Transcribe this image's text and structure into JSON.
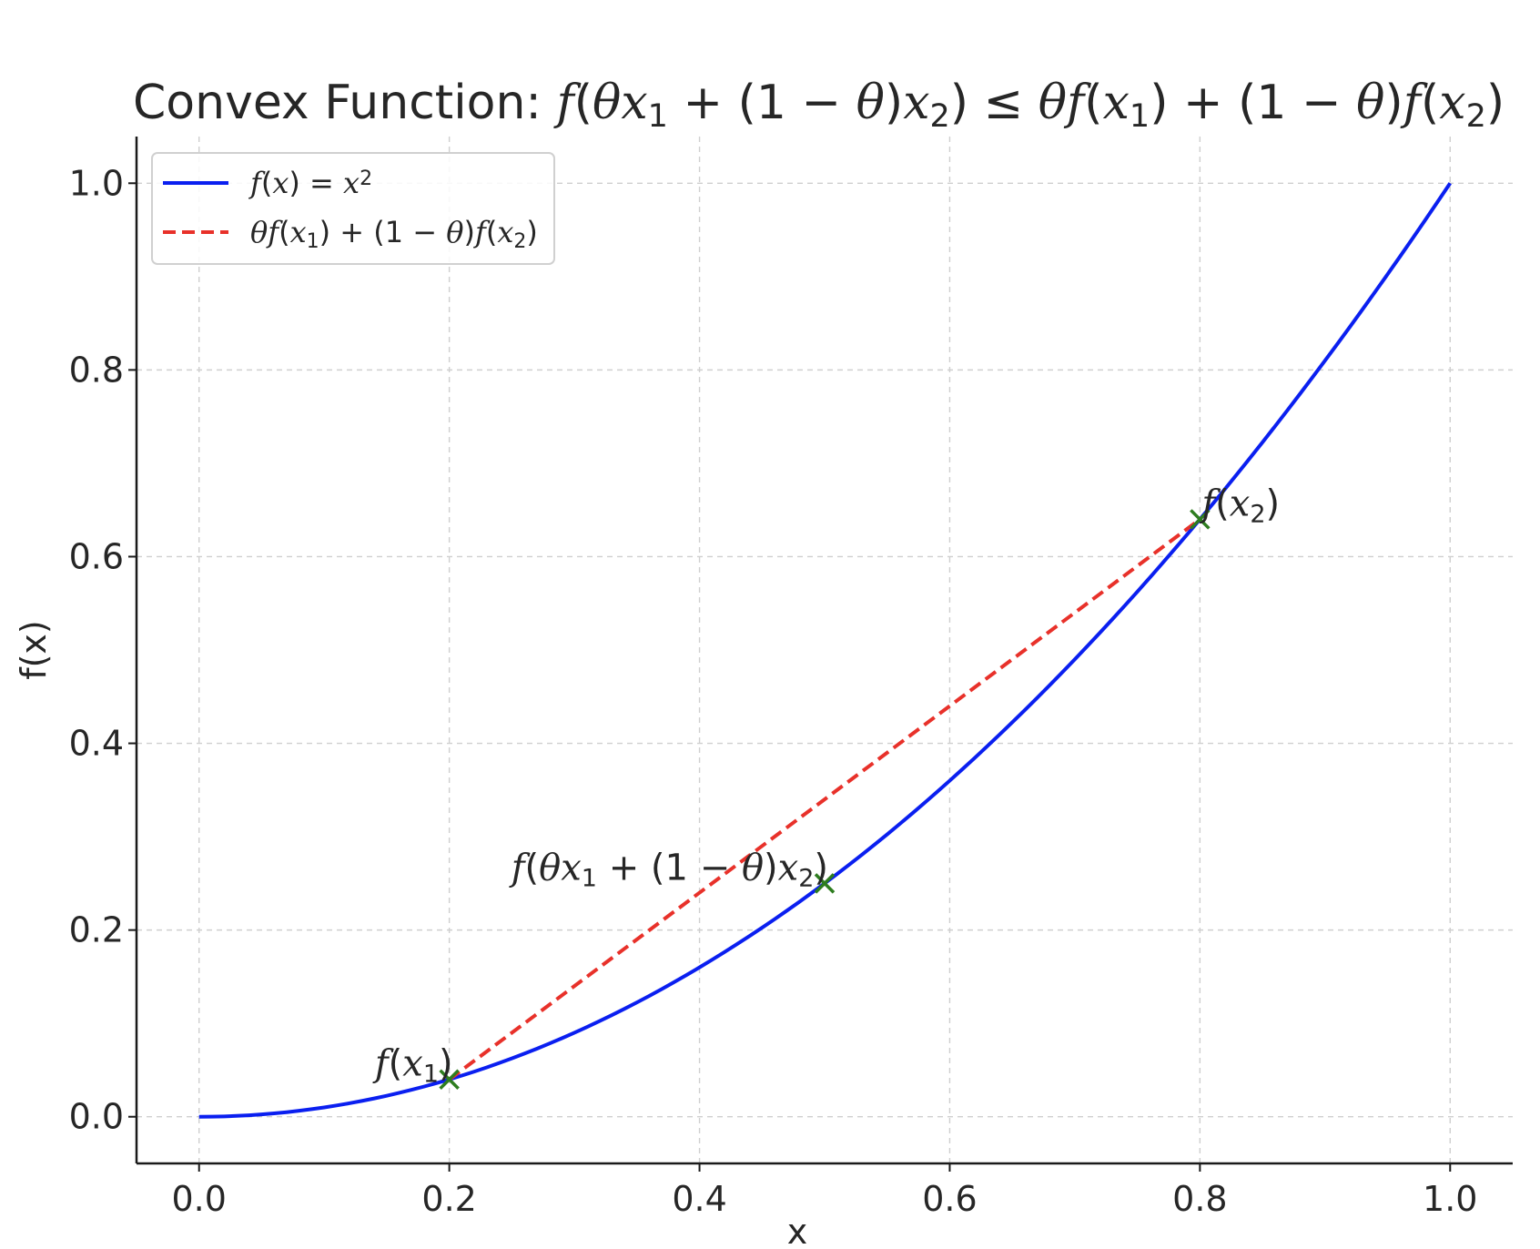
{
  "chart_data": {
    "type": "line",
    "title_prefix": "Convex Function: ",
    "title_math": [
      {
        "t": "f",
        "i": true
      },
      {
        "t": "(",
        "i": false
      },
      {
        "t": "θ",
        "i": true
      },
      {
        "t": "x",
        "i": true
      },
      {
        "t": "1",
        "sub": true
      },
      {
        "t": " + (1 − ",
        "i": false
      },
      {
        "t": "θ",
        "i": true
      },
      {
        "t": ")",
        "i": false
      },
      {
        "t": "x",
        "i": true
      },
      {
        "t": "2",
        "sub": true
      },
      {
        "t": ") ≤ ",
        "i": false
      },
      {
        "t": "θ",
        "i": true
      },
      {
        "t": "f",
        "i": true
      },
      {
        "t": "(",
        "i": false
      },
      {
        "t": "x",
        "i": true
      },
      {
        "t": "1",
        "sub": true
      },
      {
        "t": ") + (1 − ",
        "i": false
      },
      {
        "t": "θ",
        "i": true
      },
      {
        "t": ")",
        "i": false
      },
      {
        "t": "f",
        "i": true
      },
      {
        "t": "(",
        "i": false
      },
      {
        "t": "x",
        "i": true
      },
      {
        "t": "2",
        "sub": true
      },
      {
        "t": ")",
        "i": false
      }
    ],
    "xlabel": "x",
    "ylabel": "f(x)",
    "xlim": [
      -0.05,
      1.05
    ],
    "ylim": [
      -0.05,
      1.05
    ],
    "xticks": [
      0.0,
      0.2,
      0.4,
      0.6,
      0.8,
      1.0
    ],
    "xtick_labels": [
      "0.0",
      "0.2",
      "0.4",
      "0.6",
      "0.8",
      "1.0"
    ],
    "yticks": [
      0.0,
      0.2,
      0.4,
      0.6,
      0.8,
      1.0
    ],
    "ytick_labels": [
      "0.0",
      "0.2",
      "0.4",
      "0.6",
      "0.8",
      "1.0"
    ],
    "grid": true,
    "legend_position": "upper-left",
    "series": [
      {
        "name_math": [
          {
            "t": "f",
            "i": true
          },
          {
            "t": "(",
            "i": false
          },
          {
            "t": "x",
            "i": true
          },
          {
            "t": ") = ",
            "i": false
          },
          {
            "t": "x",
            "i": true
          },
          {
            "t": "2",
            "sup": true
          }
        ],
        "function": "x^2",
        "x_range": [
          0.0,
          1.0
        ],
        "samples": 101,
        "style": "solid",
        "color": "#0a1ff0"
      },
      {
        "name_math": [
          {
            "t": "θ",
            "i": true
          },
          {
            "t": "f",
            "i": true
          },
          {
            "t": "(",
            "i": false
          },
          {
            "t": "x",
            "i": true
          },
          {
            "t": "1",
            "sub": true
          },
          {
            "t": ") + (1 − ",
            "i": false
          },
          {
            "t": "θ",
            "i": true
          },
          {
            "t": ")",
            "i": false
          },
          {
            "t": "f",
            "i": true
          },
          {
            "t": "(",
            "i": false
          },
          {
            "t": "x",
            "i": true
          },
          {
            "t": "2",
            "sub": true
          },
          {
            "t": ")",
            "i": false
          }
        ],
        "x": [
          0.2,
          0.8
        ],
        "y": [
          0.04,
          0.64
        ],
        "style": "dashed",
        "color": "#e8312a"
      }
    ],
    "points": [
      {
        "x": 0.2,
        "y": 0.04,
        "marker": "x",
        "color": "#2e7d1f",
        "label_math": [
          {
            "t": "f",
            "i": true
          },
          {
            "t": "(",
            "i": false
          },
          {
            "t": "x",
            "i": true
          },
          {
            "t": "1",
            "sub": true
          },
          {
            "t": ")",
            "i": false
          }
        ],
        "label_anchor": "end"
      },
      {
        "x": 0.5,
        "y": 0.25,
        "marker": "x",
        "color": "#2e7d1f",
        "label_math": [
          {
            "t": "f",
            "i": true
          },
          {
            "t": "(",
            "i": false
          },
          {
            "t": "θ",
            "i": true
          },
          {
            "t": "x",
            "i": true
          },
          {
            "t": "1",
            "sub": true
          },
          {
            "t": " + (1 − ",
            "i": false
          },
          {
            "t": "θ",
            "i": true
          },
          {
            "t": ")",
            "i": false
          },
          {
            "t": "x",
            "i": true
          },
          {
            "t": "2",
            "sub": true
          },
          {
            "t": ")",
            "i": false
          }
        ],
        "label_anchor": "end"
      },
      {
        "x": 0.8,
        "y": 0.64,
        "marker": "x",
        "color": "#2e7d1f",
        "label_math": [
          {
            "t": "f",
            "i": true
          },
          {
            "t": "(",
            "i": false
          },
          {
            "t": "x",
            "i": true
          },
          {
            "t": "2",
            "sub": true
          },
          {
            "t": ")",
            "i": false
          }
        ],
        "label_anchor": "start"
      }
    ]
  }
}
